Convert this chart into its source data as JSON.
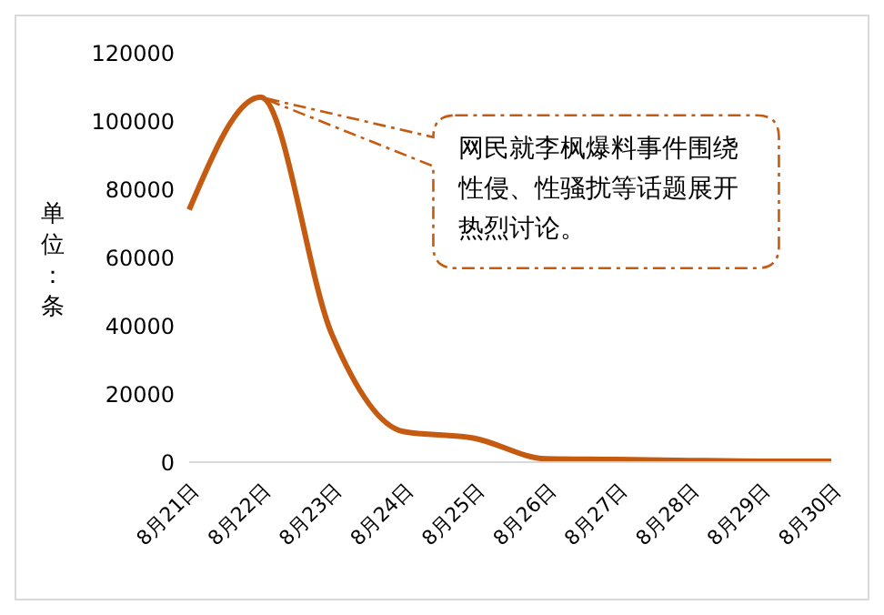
{
  "chart_data": {
    "type": "line",
    "categories": [
      "8月21日",
      "8月22日",
      "8月23日",
      "8月24日",
      "8月25日",
      "8月26日",
      "8月27日",
      "8月28日",
      "8月29日",
      "8月30日"
    ],
    "series": [
      {
        "color": "#c55a11",
        "values": [
          74000,
          107000,
          37500,
          9000,
          7000,
          1000,
          800,
          500,
          300,
          300
        ]
      }
    ],
    "ylabel": "单位：条",
    "ylim": [
      0,
      120000
    ],
    "yticks": [
      0,
      20000,
      40000,
      60000,
      80000,
      100000,
      120000
    ],
    "annotations": [
      "网民就李枫爆料事件围绕性侵、性骚扰等话题展开热烈讨论。"
    ],
    "marker": "none",
    "line_style": "solid"
  }
}
